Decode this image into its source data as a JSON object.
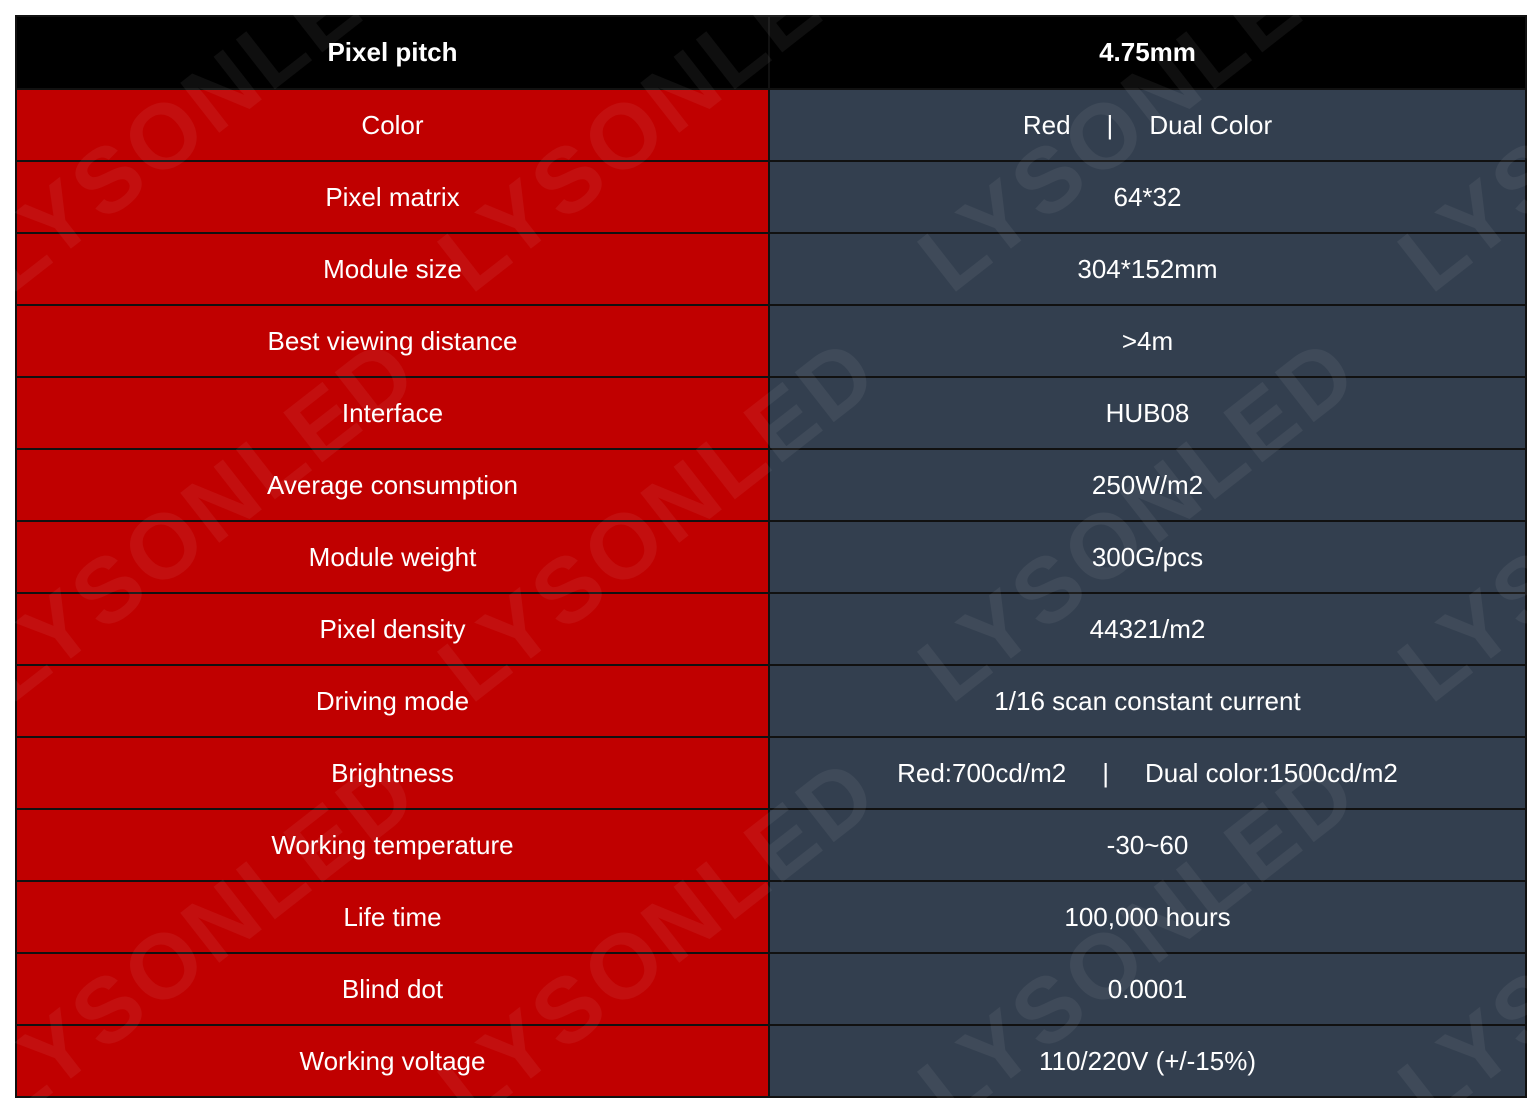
{
  "table": {
    "header": {
      "label": "Pixel pitch",
      "value": "4.75mm"
    },
    "rows": [
      {
        "label": "Color",
        "value_a": "Red",
        "separator": "|",
        "value_b": "Dual Color"
      },
      {
        "label": "Pixel matrix",
        "value": "64*32"
      },
      {
        "label": "Module size",
        "value": "304*152mm"
      },
      {
        "label": "Best viewing distance",
        "value": ">4m"
      },
      {
        "label": "Interface",
        "value": "HUB08"
      },
      {
        "label": "Average consumption",
        "value": "250W/m2"
      },
      {
        "label": "Module weight",
        "value": "300G/pcs"
      },
      {
        "label": "Pixel density",
        "value": "44321/m2"
      },
      {
        "label": "Driving mode",
        "value": "1/16 scan constant current"
      },
      {
        "label": "Brightness",
        "value_a": "Red:700cd/m2",
        "separator": "|",
        "value_b": "Dual color:1500cd/m2"
      },
      {
        "label": "Working temperature",
        "value": "-30~60"
      },
      {
        "label": "Life time",
        "value": "100,000 hours"
      },
      {
        "label": "Blind dot",
        "value": "0.0001"
      },
      {
        "label": "Working voltage",
        "value": "110/220V (+/-15%)"
      }
    ]
  },
  "watermark": {
    "text": "LYSONLED"
  },
  "colors": {
    "header_bg": "#000000",
    "label_bg": "#c00000",
    "value_bg": "#333f4f",
    "text": "#ffffff",
    "border": "#111111"
  }
}
